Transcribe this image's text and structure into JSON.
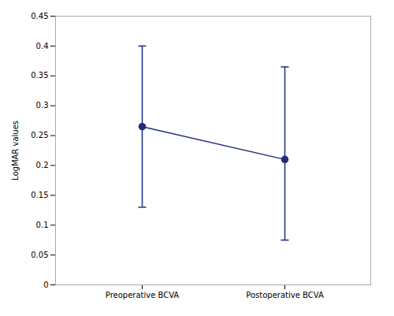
{
  "chart_data": {
    "type": "line",
    "categories": [
      "Preoperative BCVA",
      "Postoperative BCVA"
    ],
    "values": [
      0.265,
      0.21
    ],
    "errors_lower": [
      0.135,
      0.135
    ],
    "errors_upper": [
      0.135,
      0.155
    ],
    "ylabel": "LogMAR values",
    "ylim": [
      0,
      0.45
    ],
    "yticks": [
      0,
      0.05,
      0.1,
      0.15,
      0.2,
      0.25,
      0.3,
      0.35,
      0.4,
      0.45
    ],
    "color": "#1f2d7b",
    "marker": "circle",
    "grid": false
  }
}
